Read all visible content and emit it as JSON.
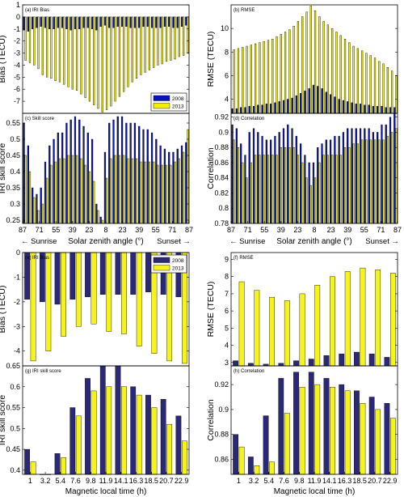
{
  "colors": {
    "top_2008": "#0b14b8",
    "top_2013": "#f0f000",
    "bottom_2008": "#2c2878",
    "bottom_2013": "#f4f41a",
    "axis": "#000000"
  },
  "chart_data": [
    {
      "id": "a",
      "type": "bar",
      "title": "(a) IRI Bias",
      "ylabel": "Bias (TECU)",
      "ylim": [
        -8,
        1
      ],
      "yticks": [
        1,
        0,
        -1,
        -2,
        -3,
        -4,
        -5,
        -6,
        -7
      ],
      "baseline": 0,
      "legend_position": "bottom-right",
      "series": [
        {
          "name": "2008",
          "values": [
            -1.1,
            -1.2,
            -1.0,
            -0.9,
            -0.8,
            -0.9,
            -1.0,
            -1.0,
            -0.9,
            -0.9,
            -1.0,
            -1.1,
            -1.0,
            -1.0,
            -0.9,
            -0.9,
            -1.0,
            -1.1,
            -0.8,
            -0.7,
            -0.9,
            -0.9,
            -0.8,
            -0.8,
            -0.8,
            -0.9,
            -0.9,
            -0.9,
            -0.8,
            -0.8,
            -0.9,
            -0.9,
            -0.9,
            -0.8,
            -0.8,
            -0.9,
            -0.9,
            -0.8,
            -0.7
          ]
        },
        {
          "name": "2013",
          "values": [
            -3.6,
            -3.8,
            -4.0,
            -4.3,
            -4.8,
            -5.0,
            -5.1,
            -5.3,
            -5.4,
            -5.6,
            -5.8,
            -6.0,
            -6.1,
            -6.4,
            -6.7,
            -7.0,
            -7.3,
            -7.6,
            -7.9,
            -7.7,
            -7.4,
            -7.0,
            -6.6,
            -6.2,
            -5.8,
            -5.4,
            -5.1,
            -4.8,
            -4.6,
            -4.4,
            -4.2,
            -4.0,
            -3.9,
            -3.7,
            -3.6,
            -3.5,
            -3.3,
            -3.2,
            -3.0
          ]
        }
      ]
    },
    {
      "id": "b",
      "type": "bar",
      "title": "(b) RMSE",
      "ylabel": "RMSE (TECU)",
      "ylim": [
        2.8,
        12
      ],
      "yticks": [
        4,
        6,
        8,
        10
      ],
      "baseline": 2.8,
      "series": [
        {
          "name": "2008",
          "values": [
            3.2,
            3.2,
            3.3,
            3.3,
            3.4,
            3.4,
            3.5,
            3.5,
            3.6,
            3.6,
            3.7,
            3.8,
            3.9,
            4.0,
            4.1,
            4.3,
            4.5,
            4.7,
            4.9,
            5.2,
            5.1,
            4.9,
            4.6,
            4.4,
            4.2,
            4.0,
            3.9,
            3.8,
            3.7,
            3.6,
            3.6,
            3.5,
            3.5,
            3.4,
            3.4,
            3.4,
            3.3,
            3.3,
            3.3
          ]
        },
        {
          "name": "2013",
          "values": [
            8.2,
            8.3,
            8.4,
            8.5,
            8.6,
            8.7,
            8.8,
            8.9,
            9.0,
            9.1,
            9.3,
            9.5,
            9.7,
            9.9,
            10.2,
            10.6,
            11.0,
            11.4,
            11.9,
            11.5,
            11.0,
            10.6,
            10.3,
            10.0,
            9.7,
            9.4,
            9.1,
            8.8,
            8.5,
            8.3,
            8.1,
            7.9,
            7.7,
            7.5,
            7.2,
            7.0,
            6.7,
            6.4,
            6.0
          ]
        }
      ]
    },
    {
      "id": "c",
      "type": "bar",
      "title": "(c) Skill score",
      "ylabel": "IRI skill score",
      "ylim": [
        0.24,
        0.58
      ],
      "yticks": [
        0.25,
        0.3,
        0.35,
        0.4,
        0.45,
        0.5,
        0.55
      ],
      "baseline": 0.24,
      "xlabel": "Solar zenith angle (°)",
      "xticks": [
        "87",
        "71",
        "55",
        "39",
        "23",
        "8",
        "23",
        "39",
        "55",
        "71",
        "87"
      ],
      "left_note": "← Sunrise",
      "right_note": "Sunset →",
      "series": [
        {
          "name": "2008",
          "values": [
            0.55,
            0.48,
            0.35,
            0.33,
            0.35,
            0.43,
            0.48,
            0.5,
            0.52,
            0.52,
            0.55,
            0.56,
            0.57,
            0.56,
            0.54,
            0.52,
            0.5,
            0.3,
            0.26,
            0.46,
            0.55,
            0.56,
            0.57,
            0.57,
            0.55,
            0.55,
            0.55,
            0.54,
            0.53,
            0.53,
            0.52,
            0.5,
            0.48,
            0.47,
            0.46,
            0.46,
            0.47,
            0.48,
            0.49
          ]
        },
        {
          "name": "2013",
          "values": [
            0.45,
            0.4,
            0.32,
            0.28,
            0.3,
            0.38,
            0.42,
            0.43,
            0.44,
            0.44,
            0.45,
            0.45,
            0.45,
            0.44,
            0.42,
            0.4,
            0.37,
            0.28,
            0.25,
            0.38,
            0.44,
            0.45,
            0.45,
            0.45,
            0.44,
            0.44,
            0.44,
            0.43,
            0.43,
            0.43,
            0.43,
            0.42,
            0.42,
            0.42,
            0.42,
            0.43,
            0.44,
            0.46,
            0.53
          ]
        }
      ]
    },
    {
      "id": "d",
      "type": "bar",
      "title": "(d) Correlation",
      "ylabel": "Correlation",
      "ylim": [
        0.78,
        0.925
      ],
      "yticks": [
        0.78,
        0.8,
        0.82,
        0.84,
        0.86,
        0.88,
        0.9,
        0.92
      ],
      "baseline": 0.78,
      "xlabel": "Solar zenith angle (°)",
      "xticks": [
        "87",
        "71",
        "55",
        "39",
        "23",
        "8",
        "23",
        "39",
        "55",
        "71",
        "87"
      ],
      "left_note": "← Sunrise",
      "right_note": "Sunset →",
      "series": [
        {
          "name": "2008",
          "values": [
            0.91,
            0.905,
            0.885,
            0.87,
            0.9,
            0.905,
            0.9,
            0.895,
            0.89,
            0.89,
            0.895,
            0.9,
            0.905,
            0.91,
            0.905,
            0.895,
            0.885,
            0.87,
            0.86,
            0.86,
            0.88,
            0.885,
            0.89,
            0.89,
            0.895,
            0.895,
            0.9,
            0.905,
            0.905,
            0.905,
            0.905,
            0.905,
            0.905,
            0.9,
            0.9,
            0.91,
            0.91,
            0.92,
            0.925
          ]
        },
        {
          "name": "2013",
          "values": [
            0.89,
            0.88,
            0.86,
            0.84,
            0.86,
            0.87,
            0.87,
            0.87,
            0.87,
            0.87,
            0.87,
            0.88,
            0.88,
            0.88,
            0.88,
            0.87,
            0.86,
            0.84,
            0.83,
            0.84,
            0.86,
            0.87,
            0.87,
            0.87,
            0.87,
            0.87,
            0.88,
            0.88,
            0.885,
            0.885,
            0.89,
            0.89,
            0.89,
            0.89,
            0.89,
            0.89,
            0.895,
            0.9,
            0.905
          ]
        }
      ]
    },
    {
      "id": "e",
      "type": "bar",
      "title": "(e) IRI Bias",
      "ylabel": "Bias (TECU)",
      "ylim": [
        -4.6,
        0
      ],
      "yticks": [
        0,
        -1,
        -2,
        -3,
        -4
      ],
      "baseline": 0,
      "legend_position": "top-right",
      "series": [
        {
          "name": "2008",
          "values": [
            -1.9,
            -2.0,
            -2.1,
            -1.9,
            -1.8,
            -1.7,
            -1.7,
            -1.7,
            -1.6,
            -1.7,
            -1.8
          ]
        },
        {
          "name": "2013",
          "values": [
            -4.4,
            -4.0,
            -3.4,
            -3.0,
            -2.9,
            -3.2,
            -3.3,
            -3.8,
            -4.1,
            -4.4,
            -4.5
          ]
        }
      ]
    },
    {
      "id": "f",
      "type": "bar",
      "title": "(f) RMSE",
      "ylabel": "RMSE (TECU)",
      "ylim": [
        2.8,
        9.4
      ],
      "yticks": [
        3,
        4,
        5,
        6,
        7,
        8,
        9
      ],
      "baseline": 2.8,
      "series": [
        {
          "name": "2008",
          "values": [
            3.1,
            2.95,
            2.9,
            2.95,
            3.1,
            3.2,
            3.4,
            3.5,
            3.6,
            3.5,
            3.3
          ]
        },
        {
          "name": "2013",
          "values": [
            7.7,
            7.2,
            6.8,
            6.6,
            7.0,
            7.5,
            8.0,
            8.3,
            8.5,
            8.4,
            8.2
          ]
        }
      ]
    },
    {
      "id": "g",
      "type": "bar",
      "title": "(g) IRI skill score",
      "ylabel": "IRI skill score",
      "ylim": [
        0.39,
        0.65
      ],
      "yticks": [
        0.4,
        0.45,
        0.5,
        0.55,
        0.6,
        0.65
      ],
      "baseline": 0.39,
      "xlabel": "Magnetic local time (h)",
      "xticks": [
        "1",
        "3.2",
        "5.4",
        "7.6",
        "9.8",
        "11.9",
        "14.1",
        "16.3",
        "18.5",
        "20.7",
        "22.9"
      ],
      "series": [
        {
          "name": "2008",
          "values": [
            0.45,
            0.39,
            0.44,
            0.55,
            0.62,
            0.65,
            0.65,
            0.6,
            0.58,
            0.57,
            0.53
          ]
        },
        {
          "name": "2013",
          "values": [
            0.42,
            0.39,
            0.43,
            0.53,
            0.59,
            0.6,
            0.6,
            0.58,
            0.55,
            0.51,
            0.47
          ]
        }
      ]
    },
    {
      "id": "h",
      "type": "bar",
      "title": "(h) Correlation",
      "ylabel": "Correlation",
      "ylim": [
        0.848,
        0.935
      ],
      "yticks": [
        0.86,
        0.88,
        0.9,
        0.92
      ],
      "baseline": 0.848,
      "xlabel": "Magnetic local time (h)",
      "xticks": [
        "1",
        "3.2",
        "5.4",
        "7.6",
        "9.8",
        "11.9",
        "14.1",
        "16.3",
        "18.5",
        "20.7",
        "22.9"
      ],
      "series": [
        {
          "name": "2008",
          "values": [
            0.88,
            0.862,
            0.895,
            0.925,
            0.93,
            0.93,
            0.925,
            0.92,
            0.915,
            0.91,
            0.905
          ]
        },
        {
          "name": "2013",
          "values": [
            0.87,
            0.855,
            0.858,
            0.897,
            0.918,
            0.92,
            0.918,
            0.915,
            0.905,
            0.9,
            0.893
          ]
        }
      ]
    }
  ]
}
